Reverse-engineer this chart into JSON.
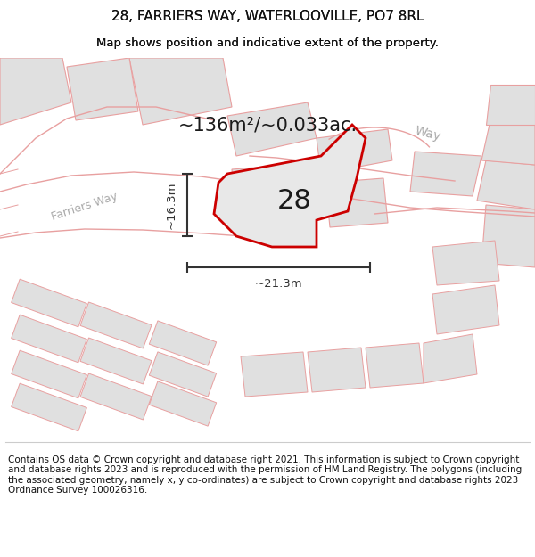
{
  "title_line1": "28, FARRIERS WAY, WATERLOOVILLE, PO7 8RL",
  "title_line2": "Map shows position and indicative extent of the property.",
  "footer_text": "Contains OS data © Crown copyright and database right 2021. This information is subject to Crown copyright and database rights 2023 and is reproduced with the permission of HM Land Registry. The polygons (including the associated geometry, namely x, y co-ordinates) are subject to Crown copyright and database rights 2023 Ordnance Survey 100026316.",
  "area_label": "~136m²/~0.033ac.",
  "number_label": "28",
  "dim_h": "~16.3m",
  "dim_w": "~21.3m",
  "street_label_left": "Farriers Way",
  "street_label_right": "Way",
  "bg_color": "#ffffff",
  "map_bg": "#ffffff",
  "building_fill": "#e0e0e0",
  "highlight_fill": "#e8e8e8",
  "highlight_stroke": "#cc0000",
  "dim_line_color": "#333333",
  "text_color": "#111111",
  "pink_line_color": "#e8a0a0",
  "road_outline_color": "#c8a0a0",
  "gray_text": "#aaaaaa",
  "footer_fontsize": 7.5,
  "title_fontsize": 11,
  "subtitle_fontsize": 9.5
}
